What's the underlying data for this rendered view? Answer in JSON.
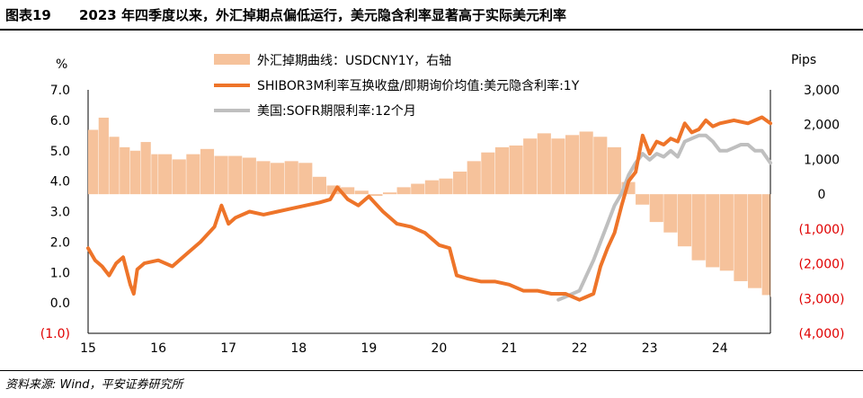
{
  "header": {
    "figure_label": "图表19",
    "title": "2023 年四季度以来，外汇掉期点偏低运行，美元隐含利率显著高于实际美元利率"
  },
  "footer": {
    "source": "资料来源: Wind，平安证券研究所"
  },
  "colors": {
    "bar": "#f6c29b",
    "shibor": "#ee7429",
    "sofr": "#bfbfbf",
    "negative_tick": "#e00000"
  },
  "chart_data": {
    "type": "line+bar",
    "left_axis": {
      "unit": "%",
      "ylim": [
        -1.0,
        7.0
      ],
      "ticks": [
        "(1.0)",
        "0.0",
        "1.0",
        "2.0",
        "3.0",
        "4.0",
        "5.0",
        "6.0",
        "7.0"
      ]
    },
    "right_axis": {
      "unit": "Pips",
      "ylim": [
        -4000,
        3000
      ],
      "ticks": [
        "(4,000)",
        "(3,000)",
        "(2,000)",
        "(1,000)",
        "0",
        "1,000",
        "2,000",
        "3,000"
      ]
    },
    "x_axis": {
      "ticks": [
        "15",
        "16",
        "17",
        "18",
        "19",
        "20",
        "21",
        "22",
        "23",
        "24"
      ],
      "xlim": [
        2015.0,
        2024.72
      ]
    },
    "legend": [
      "外汇掉期曲线：USDCNY1Y，右轴",
      "SHIBOR3M利率互换收盘/即期询价均值:美元隐含利率:1Y",
      "美国:SOFR期限利率:12个月"
    ],
    "series": [
      {
        "name": "外汇掉期曲线：USDCNY1Y，右轴",
        "type": "bar",
        "axis": "right",
        "x": [
          2015.0,
          2015.15,
          2015.3,
          2015.45,
          2015.6,
          2015.75,
          2015.9,
          2016.0,
          2016.2,
          2016.4,
          2016.6,
          2016.8,
          2017.0,
          2017.2,
          2017.4,
          2017.6,
          2017.8,
          2018.0,
          2018.2,
          2018.4,
          2018.6,
          2018.8,
          2019.0,
          2019.2,
          2019.4,
          2019.6,
          2019.8,
          2020.0,
          2020.2,
          2020.4,
          2020.6,
          2020.8,
          2021.0,
          2021.2,
          2021.4,
          2021.6,
          2021.8,
          2022.0,
          2022.2,
          2022.4,
          2022.6,
          2022.8,
          2023.0,
          2023.2,
          2023.4,
          2023.6,
          2023.8,
          2024.0,
          2024.2,
          2024.4,
          2024.6,
          2024.72
        ],
        "values": [
          1850,
          2200,
          1650,
          1350,
          1250,
          1500,
          1150,
          1150,
          1000,
          1150,
          1300,
          1100,
          1100,
          1050,
          950,
          900,
          950,
          900,
          500,
          250,
          200,
          100,
          -50,
          50,
          200,
          300,
          400,
          450,
          650,
          950,
          1200,
          1350,
          1400,
          1600,
          1750,
          1600,
          1700,
          1800,
          1650,
          1350,
          350,
          -300,
          -800,
          -1100,
          -1500,
          -1900,
          -2100,
          -2200,
          -2500,
          -2700,
          -2900,
          -2950
        ]
      },
      {
        "name": "SHIBOR3M利率互换收盘/即期询价均值:美元隐含利率:1Y",
        "type": "line",
        "axis": "left",
        "x": [
          2015.0,
          2015.1,
          2015.2,
          2015.3,
          2015.4,
          2015.5,
          2015.6,
          2015.65,
          2015.7,
          2015.8,
          2016.0,
          2016.2,
          2016.4,
          2016.6,
          2016.8,
          2016.9,
          2017.0,
          2017.1,
          2017.3,
          2017.5,
          2017.7,
          2017.9,
          2018.1,
          2018.3,
          2018.45,
          2018.55,
          2018.7,
          2018.85,
          2019.0,
          2019.2,
          2019.4,
          2019.6,
          2019.8,
          2020.0,
          2020.15,
          2020.25,
          2020.4,
          2020.6,
          2020.8,
          2021.0,
          2021.2,
          2021.4,
          2021.6,
          2021.7,
          2021.8,
          2022.0,
          2022.1,
          2022.2,
          2022.3,
          2022.4,
          2022.5,
          2022.6,
          2022.7,
          2022.8,
          2022.9,
          2023.0,
          2023.1,
          2023.2,
          2023.3,
          2023.4,
          2023.5,
          2023.6,
          2023.7,
          2023.8,
          2023.9,
          2024.0,
          2024.2,
          2024.4,
          2024.6,
          2024.72
        ],
        "values": [
          1.8,
          1.4,
          1.2,
          0.9,
          1.3,
          1.5,
          0.6,
          0.3,
          1.1,
          1.3,
          1.4,
          1.2,
          1.6,
          2.0,
          2.5,
          3.2,
          2.6,
          2.8,
          3.0,
          2.9,
          3.0,
          3.1,
          3.2,
          3.3,
          3.4,
          3.8,
          3.4,
          3.2,
          3.5,
          3.0,
          2.6,
          2.5,
          2.3,
          1.9,
          1.8,
          0.9,
          0.8,
          0.7,
          0.7,
          0.6,
          0.4,
          0.4,
          0.3,
          0.3,
          0.3,
          0.1,
          0.2,
          0.3,
          1.2,
          1.8,
          2.3,
          3.2,
          4.0,
          4.3,
          5.5,
          4.9,
          5.3,
          5.2,
          5.4,
          5.3,
          5.9,
          5.6,
          5.7,
          6.0,
          5.8,
          5.9,
          6.0,
          5.9,
          6.1,
          5.9
        ]
      },
      {
        "name": "美国:SOFR期限利率:12个月",
        "type": "line",
        "axis": "left",
        "x": [
          2021.7,
          2021.8,
          2022.0,
          2022.1,
          2022.2,
          2022.3,
          2022.4,
          2022.5,
          2022.6,
          2022.7,
          2022.8,
          2022.9,
          2023.0,
          2023.1,
          2023.2,
          2023.3,
          2023.4,
          2023.5,
          2023.6,
          2023.7,
          2023.8,
          2023.9,
          2024.0,
          2024.1,
          2024.2,
          2024.3,
          2024.4,
          2024.5,
          2024.6,
          2024.72
        ],
        "values": [
          0.1,
          0.2,
          0.4,
          0.9,
          1.4,
          2.0,
          2.6,
          3.2,
          3.6,
          4.2,
          4.6,
          4.9,
          4.7,
          4.9,
          4.8,
          5.0,
          4.8,
          5.3,
          5.4,
          5.5,
          5.5,
          5.3,
          5.0,
          5.0,
          5.1,
          5.2,
          5.2,
          5.0,
          5.0,
          4.6
        ]
      }
    ]
  }
}
